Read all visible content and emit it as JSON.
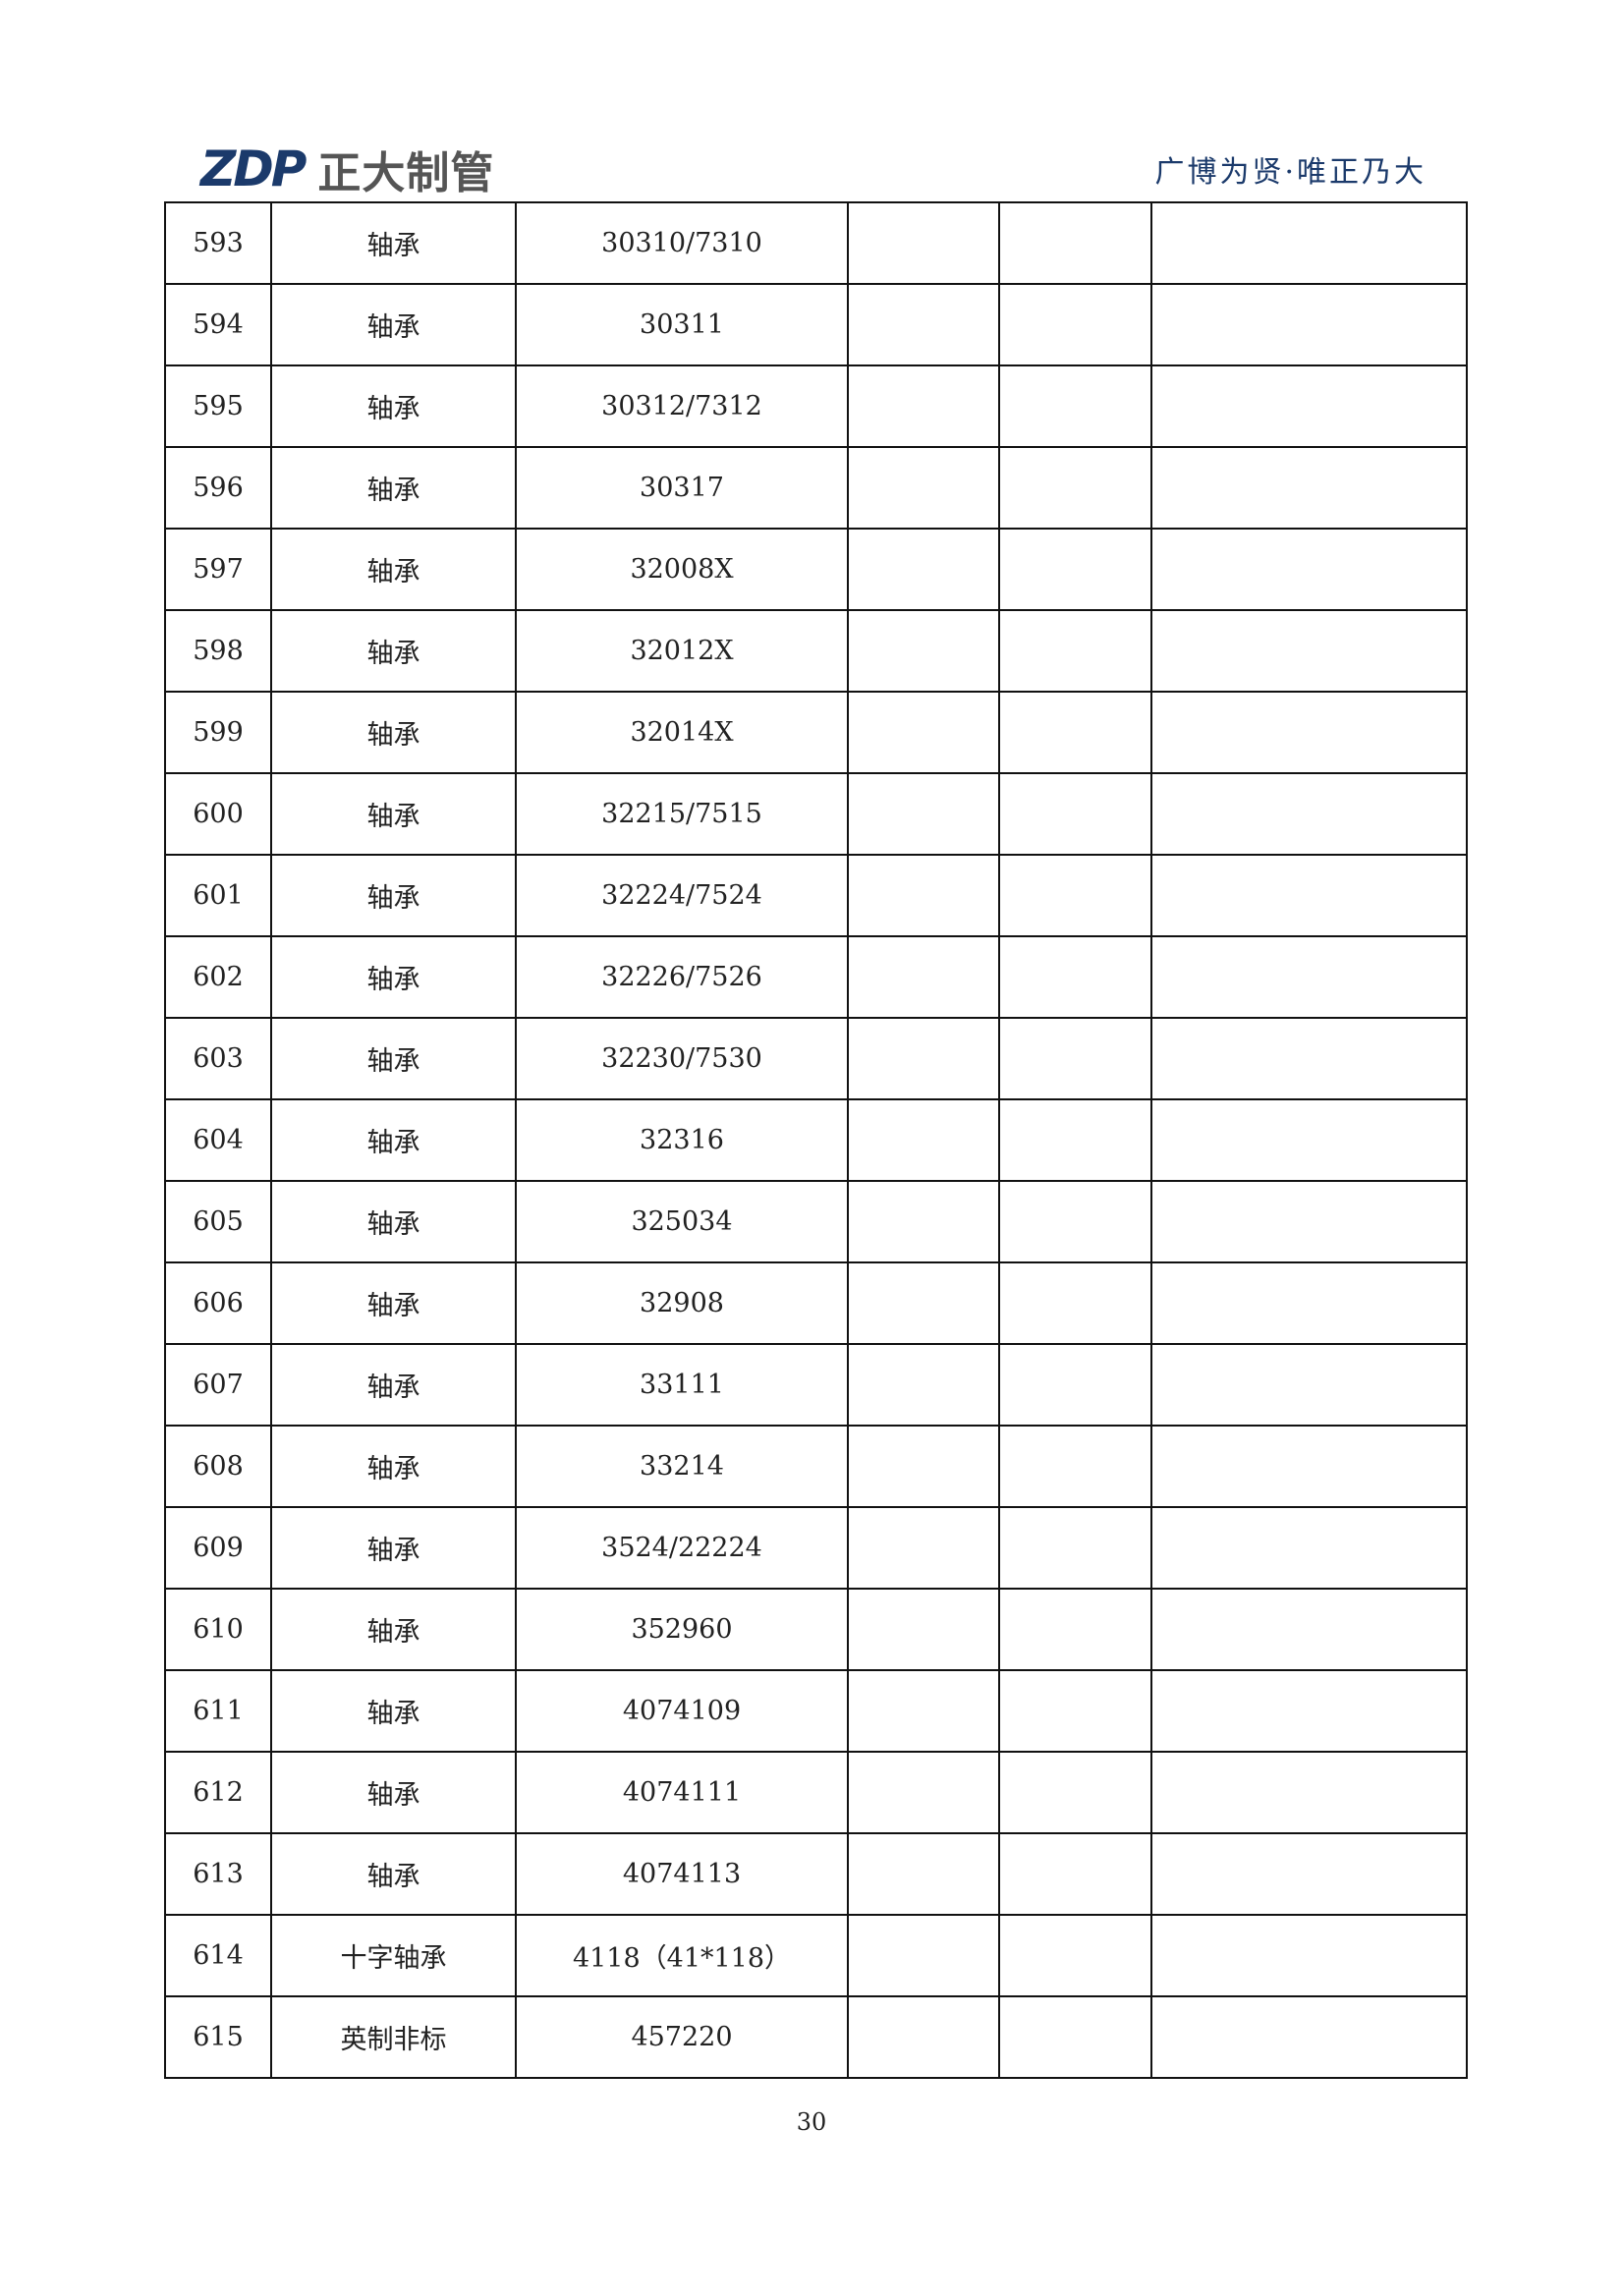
{
  "header": {
    "logo_mark": "ZDP",
    "logo_text": "正大制管",
    "slogan": "广博为贤·唯正乃大"
  },
  "table": {
    "rows": [
      {
        "no": "593",
        "name": "轴承",
        "model": "30310/7310"
      },
      {
        "no": "594",
        "name": "轴承",
        "model": "30311"
      },
      {
        "no": "595",
        "name": "轴承",
        "model": "30312/7312"
      },
      {
        "no": "596",
        "name": "轴承",
        "model": "30317"
      },
      {
        "no": "597",
        "name": "轴承",
        "model": "32008X"
      },
      {
        "no": "598",
        "name": "轴承",
        "model": "32012X"
      },
      {
        "no": "599",
        "name": "轴承",
        "model": "32014X"
      },
      {
        "no": "600",
        "name": "轴承",
        "model": "32215/7515"
      },
      {
        "no": "601",
        "name": "轴承",
        "model": "32224/7524"
      },
      {
        "no": "602",
        "name": "轴承",
        "model": "32226/7526"
      },
      {
        "no": "603",
        "name": "轴承",
        "model": "32230/7530"
      },
      {
        "no": "604",
        "name": "轴承",
        "model": "32316"
      },
      {
        "no": "605",
        "name": "轴承",
        "model": "325034"
      },
      {
        "no": "606",
        "name": "轴承",
        "model": "32908"
      },
      {
        "no": "607",
        "name": "轴承",
        "model": "33111"
      },
      {
        "no": "608",
        "name": "轴承",
        "model": "33214"
      },
      {
        "no": "609",
        "name": "轴承",
        "model": "3524/22224"
      },
      {
        "no": "610",
        "name": "轴承",
        "model": "352960"
      },
      {
        "no": "611",
        "name": "轴承",
        "model": "4074109"
      },
      {
        "no": "612",
        "name": "轴承",
        "model": "4074111"
      },
      {
        "no": "613",
        "name": "轴承",
        "model": "4074113"
      },
      {
        "no": "614",
        "name": "十字轴承",
        "model": "4118（41*118）"
      },
      {
        "no": "615",
        "name": "英制非标",
        "model": "457220"
      }
    ]
  },
  "footer": {
    "page_number": "30"
  }
}
